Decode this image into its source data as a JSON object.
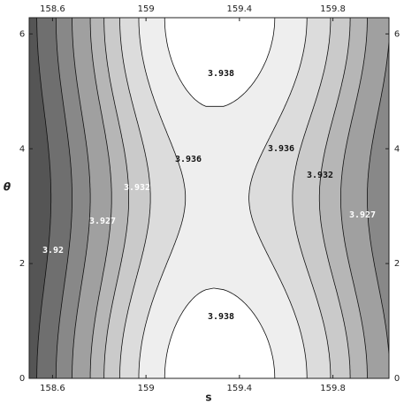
{
  "chart_data": {
    "type": "contour",
    "x_label": "s",
    "y_label": "θ",
    "xlim": [
      158.5,
      160.04
    ],
    "ylim": [
      0,
      6.283
    ],
    "xticks": [
      158.6,
      159,
      159.4,
      159.8
    ],
    "yticks": [
      0,
      2,
      4,
      6
    ],
    "levels": [
      3.915,
      3.92,
      3.924,
      3.927,
      3.93,
      3.932,
      3.934,
      3.936,
      3.938
    ],
    "colors": [
      "#0a0a0a",
      "#555555",
      "#6f6f6f",
      "#888888",
      "#a0a0a0",
      "#b6b6b6",
      "#cacaca",
      "#dcdcdc",
      "#eeeeee",
      "#ffffff"
    ],
    "contour_labels": [
      3.938,
      3.938,
      3.936,
      3.936,
      3.932,
      3.932,
      3.927,
      3.927,
      3.92
    ]
  }
}
